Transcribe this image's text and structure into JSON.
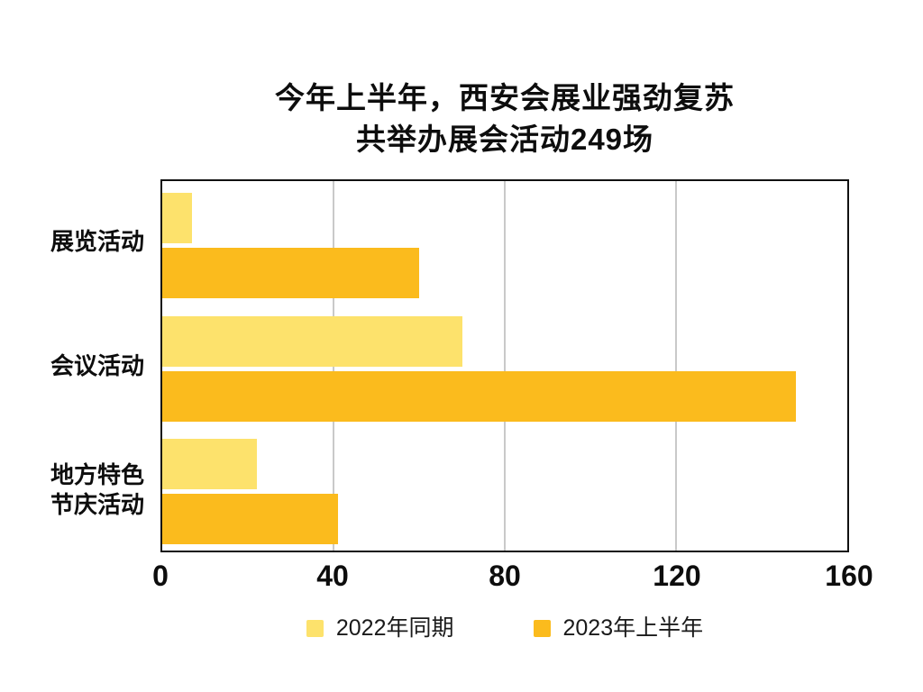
{
  "title": {
    "line1": "今年上半年，西安会展业强劲复苏",
    "line2": "共举办展会活动249场"
  },
  "chart_data": {
    "type": "bar",
    "orientation": "horizontal",
    "title": "今年上半年，西安会展业强劲复苏",
    "subtitle": "共举办展会活动249场",
    "categories": [
      "展览活动",
      "会议活动",
      "地方特色节庆活动"
    ],
    "category_lines": [
      [
        "展览活动"
      ],
      [
        "会议活动"
      ],
      [
        "地方特色",
        "节庆活动"
      ]
    ],
    "series": [
      {
        "name": "2022年同期",
        "color": "#FDE26C",
        "values": [
          7,
          70,
          22
        ]
      },
      {
        "name": "2023年上半年",
        "color": "#FBBB1D",
        "values": [
          60,
          148,
          41
        ]
      }
    ],
    "xlim": [
      0,
      160
    ],
    "xticks": [
      0,
      40,
      80,
      120,
      160
    ],
    "grid": true,
    "legend_position": "bottom"
  },
  "colors": {
    "series_2022": "#FDE26C",
    "series_2023": "#FBBB1D",
    "gridline": "#C9C9C9",
    "frame": "#111111",
    "text": "#0D0D0D",
    "background": "#FFFFFF"
  }
}
